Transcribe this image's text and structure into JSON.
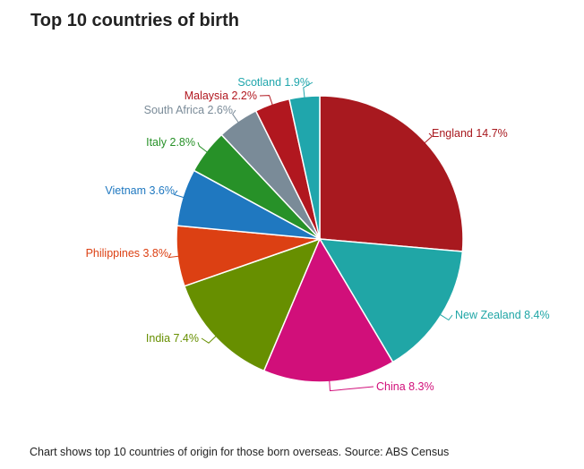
{
  "title": "Top 10 countries of birth",
  "caption": "Chart shows top 10 countries of origin for those born overseas. Source: ABS Census",
  "chart_data": {
    "type": "pie",
    "title": "Top 10 countries of birth",
    "slices": [
      {
        "name": "England",
        "value": 14.7,
        "label": "England 14.7%",
        "color": "#a8191f"
      },
      {
        "name": "New Zealand",
        "value": 8.4,
        "label": "New Zealand 8.4%",
        "color": "#20a6a6"
      },
      {
        "name": "China",
        "value": 8.3,
        "label": "China 8.3%",
        "color": "#d10f7a"
      },
      {
        "name": "India",
        "value": 7.4,
        "label": "India 7.4%",
        "color": "#678f00"
      },
      {
        "name": "Philippines",
        "value": 3.8,
        "label": "Philippines 3.8%",
        "color": "#dc4013"
      },
      {
        "name": "Vietnam",
        "value": 3.6,
        "label": "Vietnam 3.6%",
        "color": "#1f78c0"
      },
      {
        "name": "Italy",
        "value": 2.8,
        "label": "Italy 2.8%",
        "color": "#279128"
      },
      {
        "name": "South Africa",
        "value": 2.6,
        "label": "South Africa 2.6%",
        "color": "#7a8b98"
      },
      {
        "name": "Malaysia",
        "value": 2.2,
        "label": "Malaysia 2.2%",
        "color": "#b1171f"
      },
      {
        "name": "Scotland",
        "value": 1.9,
        "label": "Scotland 1.9%",
        "color": "#20a6ac"
      }
    ]
  }
}
